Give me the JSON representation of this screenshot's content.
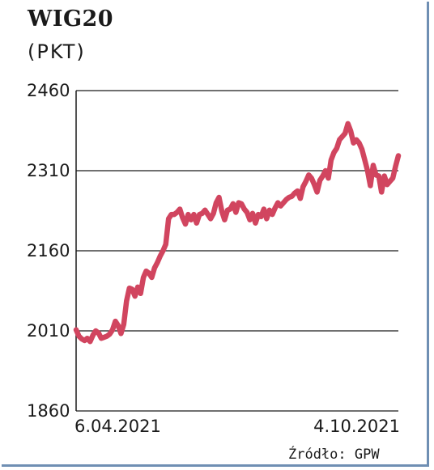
{
  "chart_data": {
    "type": "line",
    "title": "WIG20",
    "subtitle": "(PKT)",
    "ylim": [
      1860,
      2460
    ],
    "yticks": [
      2460,
      2310,
      2160,
      2010,
      1860
    ],
    "x_tick_labels": [
      "6.04.2021",
      "4.10.2021"
    ],
    "grid": true,
    "source": "Źródło: GPW",
    "series": [
      {
        "color": "#d1455f",
        "values": [
          2012,
          2000,
          1995,
          1992,
          1996,
          1990,
          2002,
          2010,
          2006,
          1996,
          1998,
          2000,
          2004,
          2012,
          2028,
          2020,
          2005,
          2022,
          2066,
          2090,
          2088,
          2075,
          2092,
          2080,
          2110,
          2122,
          2118,
          2110,
          2128,
          2138,
          2150,
          2160,
          2172,
          2220,
          2228,
          2228,
          2232,
          2238,
          2222,
          2210,
          2228,
          2218,
          2228,
          2212,
          2228,
          2230,
          2236,
          2228,
          2220,
          2230,
          2250,
          2260,
          2234,
          2218,
          2236,
          2238,
          2248,
          2232,
          2250,
          2248,
          2238,
          2232,
          2218,
          2230,
          2212,
          2228,
          2224,
          2238,
          2220,
          2236,
          2228,
          2240,
          2250,
          2244,
          2250,
          2256,
          2260,
          2262,
          2268,
          2272,
          2258,
          2280,
          2290,
          2302,
          2296,
          2284,
          2270,
          2292,
          2300,
          2310,
          2296,
          2330,
          2344,
          2352,
          2368,
          2374,
          2380,
          2398,
          2384,
          2362,
          2368,
          2362,
          2350,
          2330,
          2310,
          2282,
          2320,
          2302,
          2300,
          2270,
          2300,
          2284,
          2290,
          2296,
          2318,
          2338
        ]
      }
    ]
  }
}
